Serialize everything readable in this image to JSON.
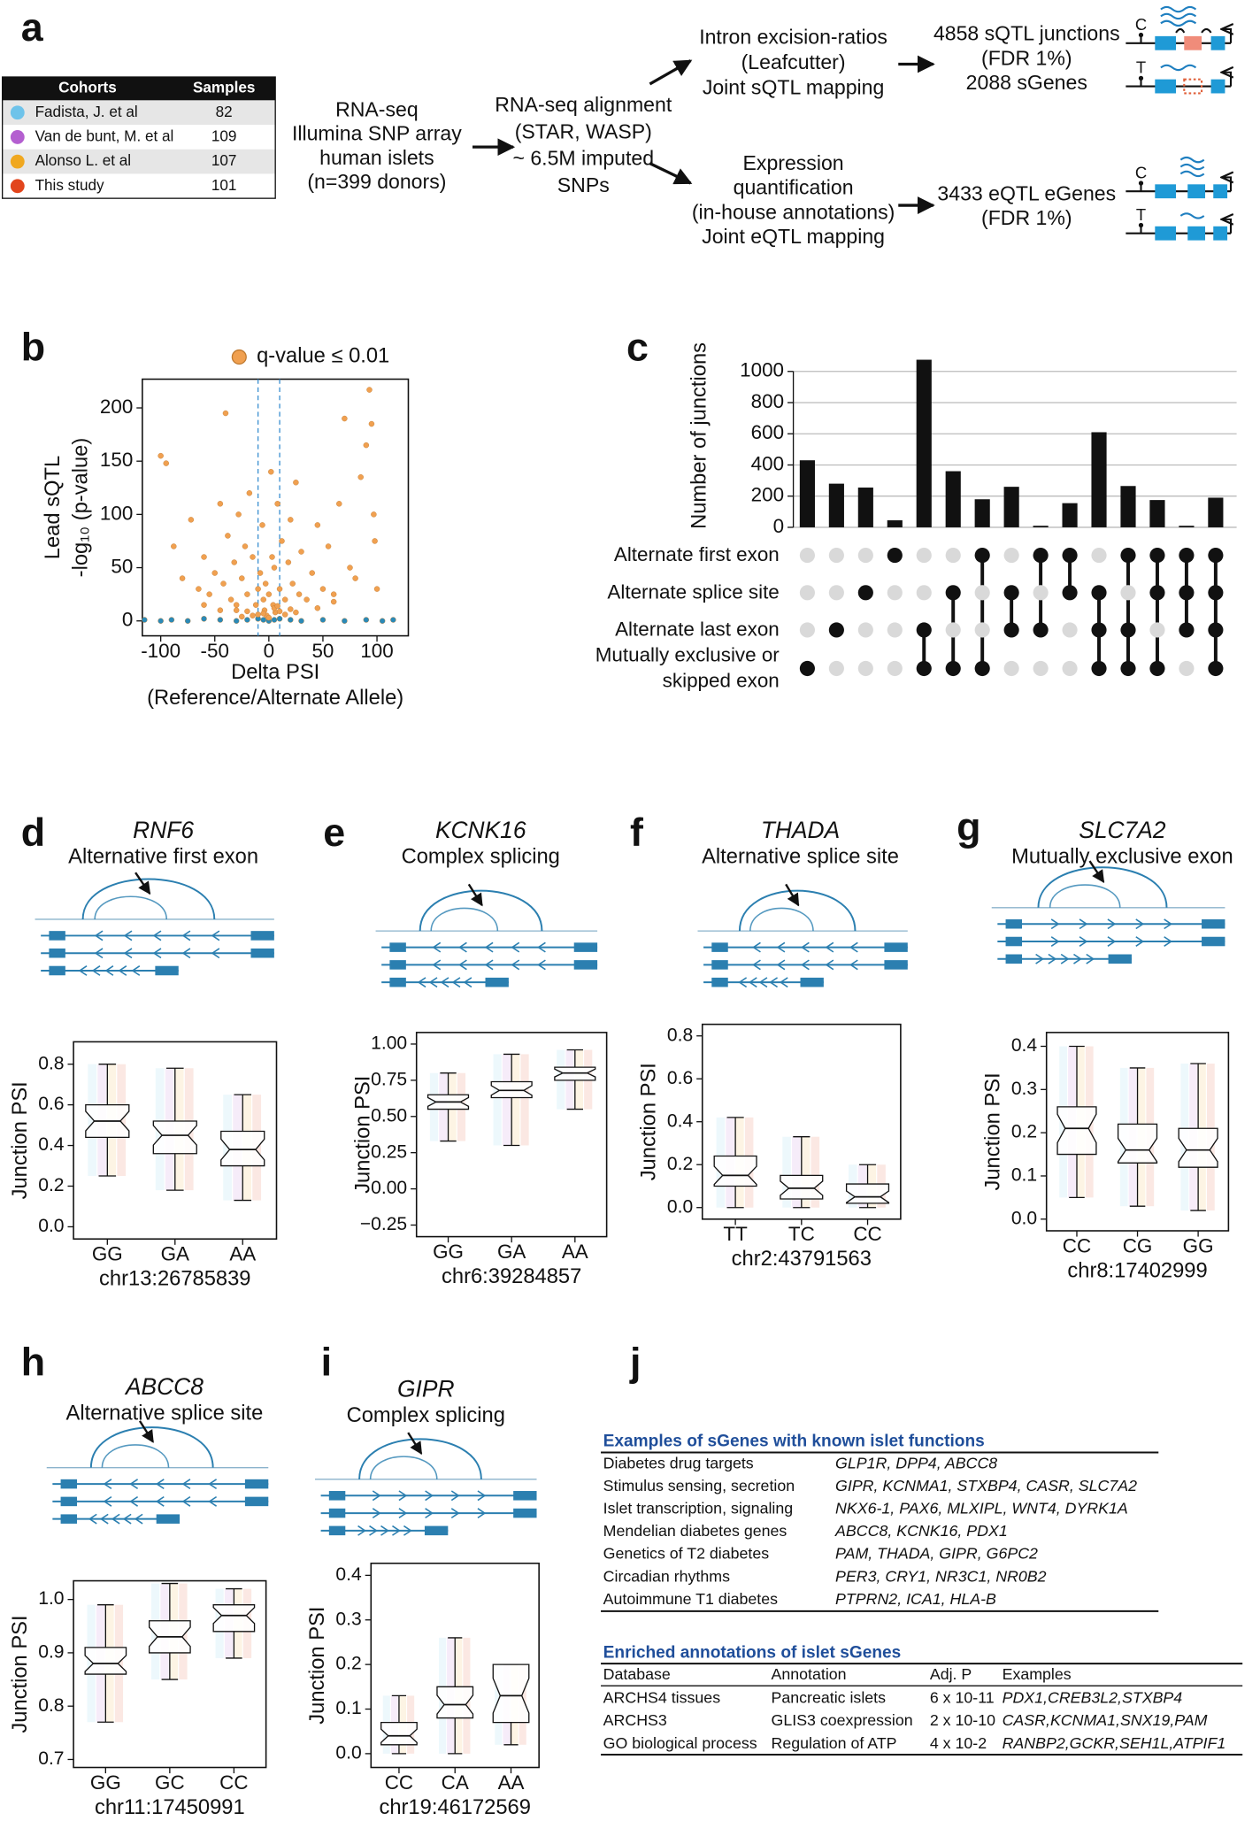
{
  "panel_labels": [
    "a",
    "b",
    "c",
    "d",
    "e",
    "f",
    "g",
    "h",
    "i",
    "j"
  ],
  "panel_a": {
    "cohort_table": {
      "headers": [
        "Cohorts",
        "Samples"
      ],
      "rows": [
        {
          "name": "Fadista, J. et al",
          "samples": 82,
          "color": "#6ec3ea"
        },
        {
          "name": "Van de bunt, M. et al",
          "samples": 109,
          "color": "#b45fd0"
        },
        {
          "name": "Alonso L. et al",
          "samples": 107,
          "color": "#f0a820"
        },
        {
          "name": "This study",
          "samples": 101,
          "color": "#e2451c"
        }
      ]
    },
    "input": [
      "RNA-seq",
      "Illumina SNP array",
      "human islets",
      "(n=399 donors)"
    ],
    "alignment": [
      "RNA-seq alignment",
      "(STAR, WASP)",
      "~ 6.5M imputed",
      "SNPs"
    ],
    "splicing": [
      "Intron excision-ratios",
      "(Leafcutter)",
      "Joint sQTL mapping"
    ],
    "sqtl_result": [
      "4858 sQTL junctions",
      "(FDR 1%)",
      "2088 sGenes"
    ],
    "expression": [
      "Expression",
      "quantification",
      "(in-house annotations)",
      "Joint eQTL mapping"
    ],
    "eqtl_result": [
      "3433 eQTL eGenes",
      "(FDR 1%)"
    ],
    "alleles": [
      "C",
      "T",
      "C",
      "T"
    ]
  },
  "chart_data": [
    {
      "type": "scatter",
      "xlabel": [
        "Delta PSI",
        "(Reference/Alternate Allele)"
      ],
      "ylabel": [
        "Lead sQTL",
        "-log₁₀ (p-value)"
      ],
      "xlim": [
        -117,
        129
      ],
      "ylim": [
        -14,
        227
      ],
      "xticks": [
        -100,
        -50,
        0,
        50,
        100
      ],
      "yticks": [
        0,
        50,
        100,
        150,
        200
      ],
      "vlines": [
        -10,
        10
      ],
      "series": [
        {
          "name": "q-value ≤ 0.01",
          "color": "#f0a050",
          "x": [
            -100,
            -95,
            -88,
            -80,
            -72,
            -65,
            -60,
            -55,
            -50,
            -45,
            -42,
            -40,
            -38,
            -35,
            -32,
            -30,
            -28,
            -25,
            -22,
            -20,
            -18,
            -15,
            -12,
            -10,
            -8,
            -6,
            -5,
            -4,
            -3,
            -2,
            0,
            2,
            3,
            4,
            5,
            6,
            8,
            10,
            12,
            15,
            18,
            20,
            22,
            25,
            28,
            30,
            35,
            40,
            45,
            50,
            55,
            60,
            65,
            70,
            75,
            80,
            85,
            90,
            93,
            95,
            97,
            98,
            100,
            -30,
            -15,
            5,
            25,
            -60,
            60,
            -45,
            45,
            15,
            -25,
            0,
            10,
            -5,
            8,
            -10,
            20,
            -20
          ],
          "y": [
            155,
            148,
            70,
            40,
            95,
            30,
            60,
            25,
            45,
            110,
            35,
            195,
            80,
            20,
            55,
            15,
            100,
            40,
            70,
            25,
            120,
            60,
            15,
            30,
            45,
            90,
            20,
            10,
            35,
            5,
            25,
            140,
            60,
            15,
            50,
            8,
            110,
            30,
            75,
            20,
            55,
            95,
            35,
            130,
            25,
            65,
            20,
            45,
            90,
            30,
            70,
            25,
            110,
            190,
            50,
            40,
            135,
            165,
            217,
            185,
            100,
            75,
            30,
            10,
            5,
            12,
            8,
            15,
            18,
            10,
            12,
            6,
            4,
            3,
            9,
            7,
            14,
            6,
            11,
            9
          ]
        },
        {
          "color": "#2a8ab8",
          "x": [
            -115,
            -100,
            -90,
            -75,
            -60,
            -45,
            -30,
            -20,
            -10,
            -5,
            0,
            5,
            10,
            20,
            30,
            50,
            70,
            90,
            105,
            115
          ],
          "y": [
            1,
            0,
            1,
            0,
            2,
            1,
            0,
            1,
            2,
            1,
            0,
            1,
            2,
            1,
            0,
            1,
            0,
            1,
            0,
            1
          ]
        }
      ]
    },
    {
      "type": "upset",
      "ylabel": "Number of junctions",
      "color": "#111111",
      "grid": true,
      "ylim": [
        0,
        1100
      ],
      "yticks": [
        0,
        200,
        400,
        600,
        800,
        1000
      ],
      "values": [
        430,
        280,
        255,
        45,
        1075,
        360,
        180,
        260,
        10,
        155,
        610,
        265,
        175,
        10,
        190
      ],
      "sets": [
        "Alternate first exon",
        "Alternate splice site",
        "Alternate last exon",
        "Mutually exclusive or skipped exon"
      ],
      "membership": [
        [
          0,
          0,
          0,
          1
        ],
        [
          0,
          0,
          1,
          0
        ],
        [
          0,
          1,
          0,
          0
        ],
        [
          1,
          0,
          0,
          0
        ],
        [
          0,
          0,
          1,
          1
        ],
        [
          0,
          1,
          0,
          1
        ],
        [
          1,
          0,
          0,
          1
        ],
        [
          0,
          1,
          1,
          0
        ],
        [
          1,
          0,
          1,
          0
        ],
        [
          1,
          1,
          0,
          0
        ],
        [
          0,
          1,
          1,
          1
        ],
        [
          1,
          0,
          1,
          1
        ],
        [
          1,
          1,
          0,
          1
        ],
        [
          1,
          1,
          1,
          0
        ],
        [
          1,
          1,
          1,
          1
        ]
      ]
    },
    {
      "type": "box",
      "title": "RNF6",
      "subtitle": "Alternative first exon",
      "ylabel": "Junction PSI",
      "xlabel": "chr13:26785839",
      "categories": [
        "GG",
        "GA",
        "AA"
      ],
      "ylim": [
        -0.06,
        0.91
      ],
      "yticks": [
        {
          "value": 0,
          "label": "0.0"
        },
        0.2,
        0.4,
        0.6,
        0.8
      ],
      "boxes": [
        {
          "min": 0.25,
          "q1": 0.44,
          "median": 0.52,
          "q3": 0.6,
          "max": 0.8
        },
        {
          "min": 0.18,
          "q1": 0.36,
          "median": 0.45,
          "q3": 0.52,
          "max": 0.78
        },
        {
          "min": 0.13,
          "q1": 0.3,
          "median": 0.38,
          "q3": 0.47,
          "max": 0.65
        }
      ]
    },
    {
      "type": "box",
      "title": "KCNK16",
      "subtitle": "Complex splicing",
      "ylabel": "Junction PSI",
      "xlabel": "chr6:39284857",
      "categories": [
        "GG",
        "GA",
        "AA"
      ],
      "ylim": [
        -0.33,
        1.08
      ],
      "yticks": [
        {
          "value": -0.25,
          "label": "−0.25"
        },
        {
          "value": 0,
          "label": "0.00"
        },
        0.25,
        {
          "value": 0.5,
          "label": "0.50"
        },
        0.75,
        {
          "value": 1,
          "label": "1.00"
        }
      ],
      "boxes": [
        {
          "min": 0.33,
          "q1": 0.55,
          "median": 0.6,
          "q3": 0.65,
          "max": 0.8
        },
        {
          "min": 0.3,
          "q1": 0.63,
          "median": 0.68,
          "q3": 0.74,
          "max": 0.93
        },
        {
          "min": 0.55,
          "q1": 0.75,
          "median": 0.8,
          "q3": 0.84,
          "max": 0.96
        }
      ]
    },
    {
      "type": "box",
      "title": "THADA",
      "subtitle": "Alternative splice site",
      "ylabel": "Junction PSI",
      "xlabel": "chr2:43791563",
      "categories": [
        "TT",
        "TC",
        "CC"
      ],
      "ylim": [
        -0.054,
        0.854
      ],
      "yticks": [
        {
          "value": 0,
          "label": "0.0"
        },
        0.2,
        0.4,
        0.6,
        0.8
      ],
      "boxes": [
        {
          "min": 0,
          "q1": 0.1,
          "median": 0.15,
          "q3": 0.24,
          "max": 0.42
        },
        {
          "min": 0,
          "q1": 0.04,
          "median": 0.09,
          "q3": 0.15,
          "max": 0.33
        },
        {
          "min": 0,
          "q1": 0.02,
          "median": 0.05,
          "q3": 0.11,
          "max": 0.2
        }
      ]
    },
    {
      "type": "box",
      "title": "SLC7A2",
      "subtitle": "Mutually exclusive exon",
      "ylabel": "Junction PSI",
      "xlabel": "chr8:17402999",
      "categories": [
        "CC",
        "CG",
        "GG"
      ],
      "ylim": [
        -0.027,
        0.432
      ],
      "yticks": [
        {
          "value": 0,
          "label": "0.0"
        },
        0.1,
        0.2,
        0.3,
        0.4
      ],
      "boxes": [
        {
          "min": 0.05,
          "q1": 0.15,
          "median": 0.21,
          "q3": 0.26,
          "max": 0.4
        },
        {
          "min": 0.03,
          "q1": 0.13,
          "median": 0.16,
          "q3": 0.22,
          "max": 0.35
        },
        {
          "min": 0.02,
          "q1": 0.12,
          "median": 0.16,
          "q3": 0.21,
          "max": 0.36
        }
      ]
    },
    {
      "type": "box",
      "title": "ABCC8",
      "subtitle": "Alternative splice site",
      "ylabel": "Junction PSI",
      "xlabel": "chr11:17450991",
      "categories": [
        "GG",
        "GC",
        "CC"
      ],
      "ylim": [
        0.685,
        1.035
      ],
      "yticks": [
        0.7,
        0.8,
        0.9,
        {
          "value": 1,
          "label": "1.0"
        }
      ],
      "boxes": [
        {
          "min": 0.77,
          "q1": 0.86,
          "median": 0.88,
          "q3": 0.91,
          "max": 0.99
        },
        {
          "min": 0.85,
          "q1": 0.9,
          "median": 0.93,
          "q3": 0.96,
          "max": 1.03
        },
        {
          "min": 0.89,
          "q1": 0.94,
          "median": 0.97,
          "q3": 0.99,
          "max": 1.02
        }
      ]
    },
    {
      "type": "box",
      "title": "GIPR",
      "subtitle": "Complex splicing",
      "ylabel": "Junction PSI",
      "xlabel": "chr19:46172569",
      "categories": [
        "CC",
        "CA",
        "AA"
      ],
      "ylim": [
        -0.031,
        0.427
      ],
      "yticks": [
        {
          "value": 0,
          "label": "0.0"
        },
        0.1,
        0.2,
        0.3,
        0.4
      ],
      "boxes": [
        {
          "min": 0,
          "q1": 0.02,
          "median": 0.04,
          "q3": 0.07,
          "max": 0.13
        },
        {
          "min": 0,
          "q1": 0.08,
          "median": 0.11,
          "q3": 0.15,
          "max": 0.26
        },
        {
          "min": 0.02,
          "q1": 0.07,
          "median": 0.13,
          "q3": 0.2,
          "max": 0.2
        }
      ]
    }
  ],
  "panel_j": {
    "known": {
      "title": "Examples of  sGenes with known islet functions",
      "rows": [
        [
          "Diabetes drug targets",
          "GLP1R, DPP4, ABCC8"
        ],
        [
          "Stimulus sensing, secretion",
          "GIPR,  KCNMA1, STXBP4, CASR, SLC7A2"
        ],
        [
          "Islet transcription, signaling",
          "NKX6-1, PAX6, MLXIPL, WNT4, DYRK1A"
        ],
        [
          "Mendelian diabetes genes",
          "ABCC8, KCNK16, PDX1"
        ],
        [
          "Genetics of T2 diabetes",
          "PAM, THADA, GIPR, G6PC2"
        ],
        [
          "Circadian rhythms",
          "PER3, CRY1, NR3C1, NR0B2"
        ],
        [
          "Autoimmune T1 diabetes",
          "PTPRN2, ICA1, HLA-B"
        ]
      ]
    },
    "enriched": {
      "title": "Enriched annotations of islet sGenes",
      "headers": [
        "Database",
        "Annotation",
        "Adj. P",
        "Examples"
      ],
      "rows": [
        [
          "ARCHS4 tissues",
          "Pancreatic islets",
          "6 x 10-11",
          "PDX1,CREB3L2,STXBP4"
        ],
        [
          "ARCHS3",
          "GLIS3 coexpression",
          "2 x 10-10",
          "CASR,KCNMA1,SNX19,PAM"
        ],
        [
          "GO biological process",
          "Regulation of ATP",
          "4 x 10-2",
          "RANBP2,GCKR,SEH1L,ATPIF1"
        ]
      ]
    }
  }
}
